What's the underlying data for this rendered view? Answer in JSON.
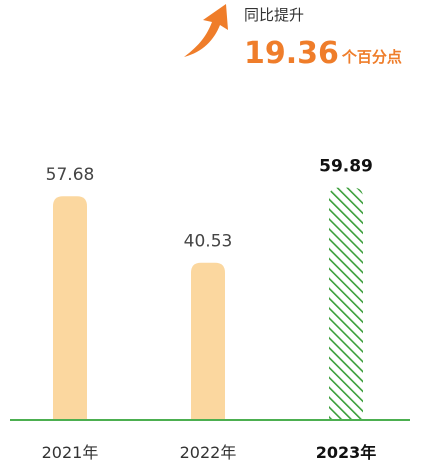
{
  "chart_data": {
    "type": "bar",
    "categories": [
      "2021年",
      "2022年",
      "2023年"
    ],
    "values": [
      57.68,
      40.53,
      59.89
    ],
    "color": "#fbd79f",
    "highlight_index": 2,
    "highlight_color": "#3a9e3a",
    "baseline_color": "#4caf50",
    "annotation": {
      "label": "同比提升",
      "value": 19.36,
      "unit": "个百分点",
      "color": "#ef7d2a"
    }
  }
}
